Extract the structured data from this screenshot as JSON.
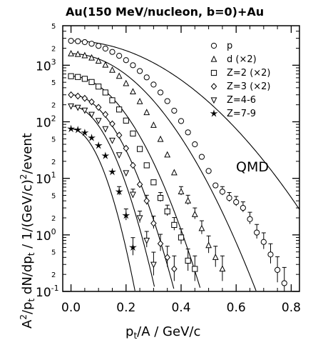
{
  "chart_data": {
    "type": "scatter",
    "title": "Au(150 MeV/nucleon, b=0)+Au",
    "xlabel": "p_t/A / GeV/c",
    "ylabel": "A^2/p_t dN/dp_t / 1/(GeV/c)^2/event",
    "xlim": [
      -0.03,
      0.83
    ],
    "ylim": [
      0.1,
      5000
    ],
    "yscale": "log",
    "x_ticks": [
      "0.0",
      "0.2",
      "0.4",
      "0.6",
      "0.8"
    ],
    "y_major_ticks": [
      "10^-1",
      "10^0",
      "10^1",
      "10^2",
      "10^3"
    ],
    "y_minor_labels": [
      "2",
      "5"
    ],
    "annotation": "QMD",
    "legend_position": "top-right",
    "series": [
      {
        "name": "p",
        "marker": "circle",
        "x": [
          0.0,
          0.025,
          0.05,
          0.075,
          0.1,
          0.125,
          0.15,
          0.175,
          0.2,
          0.225,
          0.25,
          0.275,
          0.3,
          0.325,
          0.35,
          0.375,
          0.4,
          0.425,
          0.45,
          0.475,
          0.5,
          0.525,
          0.55,
          0.575,
          0.6,
          0.625,
          0.65,
          0.675,
          0.7,
          0.725,
          0.75,
          0.775
        ],
        "y": [
          2700,
          2660,
          2560,
          2400,
          2200,
          1970,
          1720,
          1470,
          1230,
          1000,
          790,
          610,
          455,
          330,
          232,
          157,
          103,
          65,
          40,
          24,
          13.5,
          7.5,
          5.8,
          4.5,
          3.8,
          3.0,
          1.9,
          1.1,
          0.75,
          0.45,
          0.24,
          0.14
        ],
        "fit": {
          "a": 2700,
          "s": 0.224
        }
      },
      {
        "name": "d (×2)",
        "marker": "triangle",
        "x": [
          0.0,
          0.025,
          0.05,
          0.075,
          0.1,
          0.125,
          0.15,
          0.175,
          0.2,
          0.225,
          0.25,
          0.275,
          0.3,
          0.325,
          0.35,
          0.375,
          0.4,
          0.425,
          0.45,
          0.475,
          0.5,
          0.525,
          0.55
        ],
        "y": [
          1600,
          1560,
          1480,
          1350,
          1190,
          1010,
          820,
          640,
          475,
          340,
          228,
          146,
          87,
          49,
          26,
          12.6,
          5.8,
          4.0,
          2.3,
          1.3,
          0.65,
          0.4,
          0.25
        ],
        "fit": {
          "a": 1600,
          "s": 0.153
        }
      },
      {
        "name": "Z=2 (×2)",
        "marker": "square",
        "x": [
          0.0,
          0.025,
          0.05,
          0.075,
          0.1,
          0.125,
          0.15,
          0.175,
          0.2,
          0.225,
          0.25,
          0.275,
          0.3,
          0.325,
          0.35,
          0.375,
          0.4,
          0.425,
          0.45
        ],
        "y": [
          640,
          620,
          575,
          505,
          420,
          330,
          240,
          165,
          105,
          62,
          33,
          17,
          8.5,
          4.5,
          2.6,
          1.5,
          0.9,
          0.35,
          0.25
        ],
        "fit": {
          "a": 640,
          "s": 0.113
        }
      },
      {
        "name": "Z=3 (×2)",
        "marker": "diamond",
        "x": [
          0.0,
          0.025,
          0.05,
          0.075,
          0.1,
          0.125,
          0.15,
          0.175,
          0.2,
          0.225,
          0.25,
          0.275,
          0.3,
          0.325,
          0.35,
          0.375
        ],
        "y": [
          300,
          285,
          260,
          225,
          180,
          135,
          92,
          58,
          34,
          17,
          7.8,
          4.0,
          1.6,
          0.7,
          0.4,
          0.25
        ],
        "fit": {
          "a": 300,
          "s": 0.094
        }
      },
      {
        "name": "Z=4-6",
        "marker": "triangle-down",
        "x": [
          0.0,
          0.025,
          0.05,
          0.075,
          0.1,
          0.125,
          0.15,
          0.175,
          0.2,
          0.225,
          0.25,
          0.275,
          0.3
        ],
        "y": [
          190,
          180,
          160,
          135,
          105,
          75,
          47,
          26,
          12.5,
          5.2,
          2.0,
          0.8,
          0.3
        ],
        "fit": {
          "a": 190,
          "s": 0.079
        }
      },
      {
        "name": "Z=7-9",
        "marker": "star",
        "x": [
          0.0,
          0.025,
          0.05,
          0.075,
          0.1,
          0.125,
          0.15,
          0.175,
          0.2,
          0.225
        ],
        "y": [
          75,
          72,
          64,
          52,
          38,
          25,
          13,
          5.8,
          2.2,
          0.6
        ],
        "fit": {
          "a": 75,
          "s": 0.064
        }
      }
    ]
  }
}
